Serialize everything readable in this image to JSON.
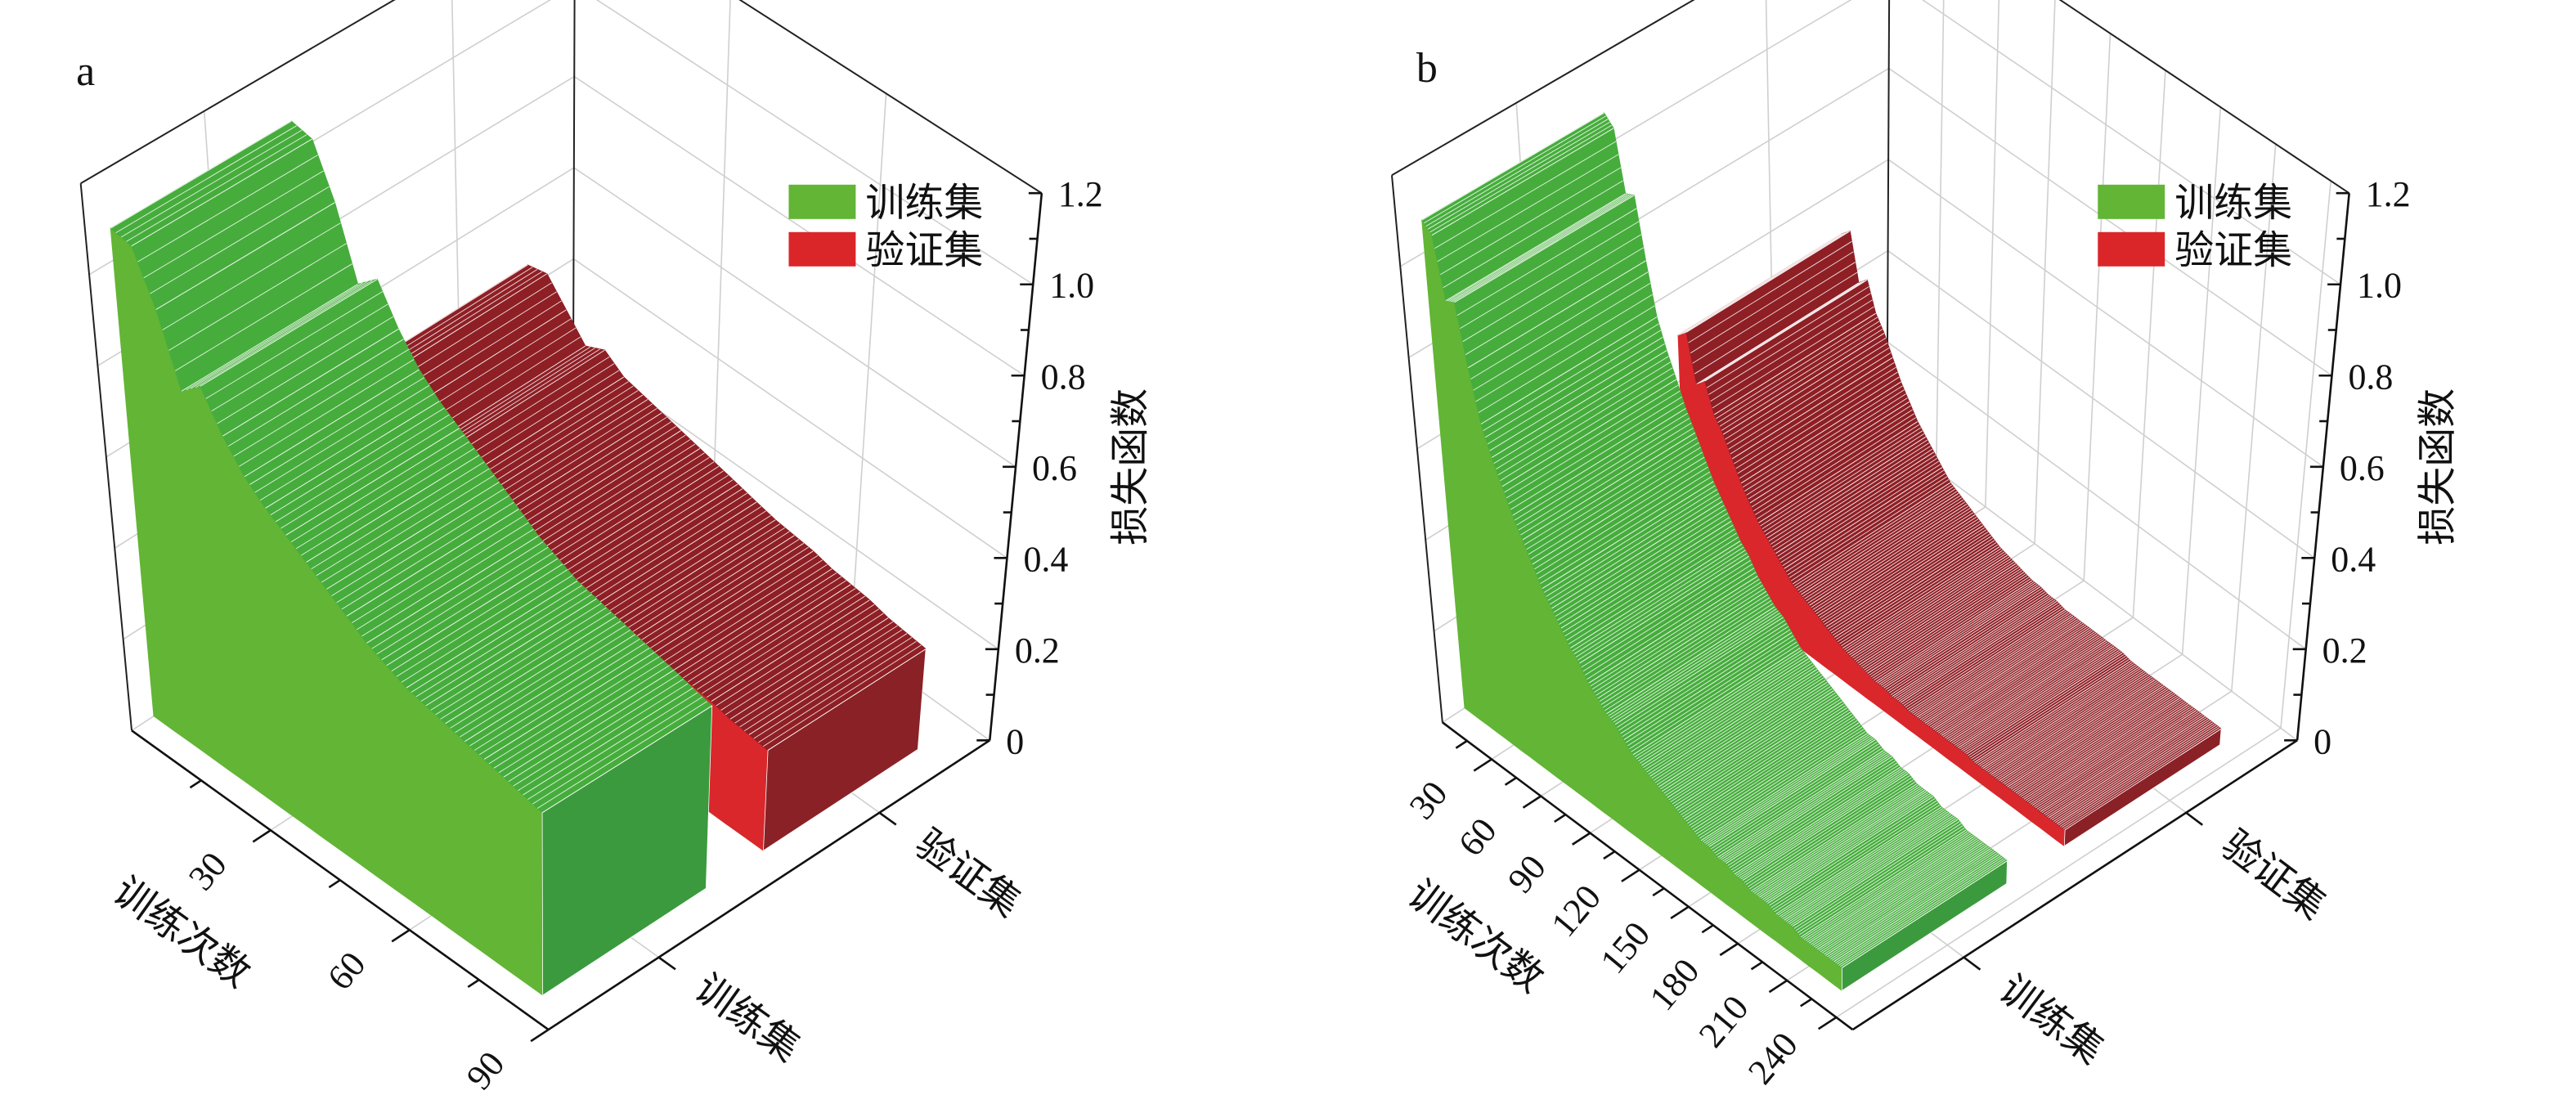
{
  "chart_data": [
    {
      "panel_label": "a",
      "type": "3d-wall",
      "title": "",
      "xlabel": "训练次数",
      "zlabel": "损失函数",
      "xlim": [
        0,
        90
      ],
      "x_ticks": [
        30,
        60,
        90
      ],
      "categories": [
        "训练集",
        "验证集"
      ],
      "zlim": [
        0,
        1.2
      ],
      "z_ticks": [
        "0",
        "0.2",
        "0.4",
        "0.6",
        "0.8",
        "1.0",
        "1.2"
      ],
      "grid": true,
      "legend_position": "top-right",
      "legend": [
        {
          "label": "训练集",
          "color": "#62b535"
        },
        {
          "label": "验证集",
          "color": "#da2629"
        }
      ],
      "x": [
        0,
        4,
        8,
        12,
        16,
        20,
        24,
        28,
        32,
        36,
        40,
        44,
        48,
        52,
        56,
        60,
        64,
        68,
        72,
        76,
        80,
        84
      ],
      "series": [
        {
          "name": "训练集",
          "values": [
            1.07,
            1.06,
            0.95,
            0.8,
            0.84,
            0.76,
            0.7,
            0.66,
            0.63,
            0.6,
            0.57,
            0.54,
            0.51,
            0.49,
            0.47,
            0.46,
            0.45,
            0.44,
            0.43,
            0.42,
            0.41,
            0.4
          ]
        },
        {
          "name": "验证集",
          "values": [
            0.45,
            0.46,
            0.41,
            0.36,
            0.38,
            0.35,
            0.34,
            0.33,
            0.32,
            0.31,
            0.3,
            0.29,
            0.28,
            0.27,
            0.265,
            0.26,
            0.25,
            0.245,
            0.24,
            0.23,
            0.225,
            0.22
          ]
        }
      ]
    },
    {
      "panel_label": "b",
      "type": "3d-wall",
      "title": "",
      "xlabel": "训练次数",
      "zlabel": "损失函数",
      "xlim": [
        0,
        250
      ],
      "x_ticks": [
        30,
        60,
        90,
        120,
        150,
        180,
        210,
        240
      ],
      "categories": [
        "训练集",
        "验证集"
      ],
      "zlim": [
        0,
        1.2
      ],
      "z_ticks": [
        "0",
        "0.2",
        "0.4",
        "0.6",
        "0.8",
        "1.0",
        "1.2"
      ],
      "grid": true,
      "legend_position": "top-right",
      "legend": [
        {
          "label": "训练集",
          "color": "#62b535"
        },
        {
          "label": "验证集",
          "color": "#da2629"
        }
      ],
      "x": [
        0,
        5,
        10,
        15,
        20,
        25,
        30,
        35,
        40,
        45,
        50,
        55,
        60,
        65,
        70,
        75,
        80,
        85,
        90,
        95,
        100,
        105,
        110,
        115,
        120,
        125,
        130,
        135,
        140,
        145,
        150,
        155,
        160,
        165,
        170,
        175,
        180,
        185,
        190,
        195,
        200,
        205,
        210,
        215,
        220,
        225,
        230
      ],
      "series": [
        {
          "name": "训练集",
          "values": [
            1.07,
            1.05,
            0.92,
            0.93,
            0.8,
            0.69,
            0.63,
            0.58,
            0.53,
            0.49,
            0.45,
            0.41,
            0.38,
            0.35,
            0.32,
            0.3,
            0.27,
            0.25,
            0.23,
            0.22,
            0.2,
            0.18,
            0.17,
            0.16,
            0.15,
            0.14,
            0.13,
            0.12,
            0.11,
            0.1,
            0.1,
            0.09,
            0.09,
            0.08,
            0.08,
            0.07,
            0.07,
            0.07,
            0.06,
            0.06,
            0.06,
            0.05,
            0.05,
            0.05,
            0.05,
            0.05,
            0.05
          ]
        },
        {
          "name": "验证集",
          "values": [
            0.5,
            0.52,
            0.42,
            0.44,
            0.38,
            0.35,
            0.31,
            0.27,
            0.24,
            0.21,
            0.19,
            0.17,
            0.15,
            0.13,
            0.12,
            0.11,
            0.1,
            0.09,
            0.08,
            0.07,
            0.065,
            0.06,
            0.055,
            0.05,
            0.05,
            0.045,
            0.045,
            0.04,
            0.04,
            0.04,
            0.04,
            0.04,
            0.04,
            0.04,
            0.04,
            0.035,
            0.035,
            0.035,
            0.035,
            0.035,
            0.035,
            0.035,
            0.035,
            0.035,
            0.035,
            0.035,
            0.035
          ]
        }
      ]
    }
  ]
}
